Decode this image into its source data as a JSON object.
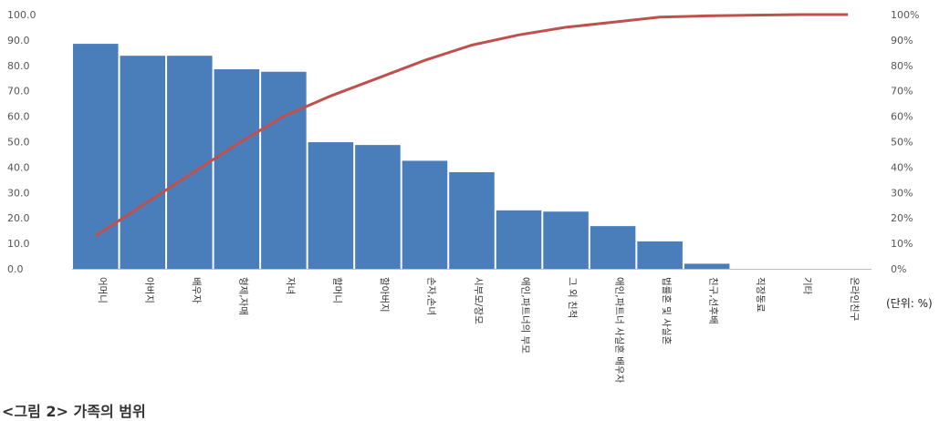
{
  "chart_data": {
    "type": "bar",
    "categories": [
      "어머니",
      "아버지",
      "배우자",
      "형제,자매",
      "자녀",
      "할머니",
      "할아버지",
      "손자,손녀",
      "시부모/장모",
      "애인,파트너의 부모",
      "그 외 친척",
      "애인,파트너 사실혼 배우자",
      "법률혼 및 사실혼",
      "친구,선후배",
      "직장동료",
      "기타",
      "온라인친구"
    ],
    "series": [
      {
        "type": "bar",
        "values": [
          88.5,
          83.8,
          83.8,
          78.5,
          77.5,
          49.8,
          48.7,
          42.5,
          38.0,
          23.0,
          22.5,
          16.8,
          10.8,
          2.0,
          0.0,
          0.0,
          0.0
        ],
        "color": "#4a7ebb"
      },
      {
        "type": "line",
        "axis": "right",
        "values": [
          13,
          25,
          37,
          49,
          60,
          68,
          75,
          82,
          88,
          92,
          95,
          97,
          99,
          99.5,
          99.8,
          100,
          100
        ],
        "color": "#c0504d"
      }
    ],
    "yticks_left": [
      "100.0",
      "90.0",
      "80.0",
      "70.0",
      "60.0",
      "50.0",
      "40.0",
      "30.0",
      "20.0",
      "10.0",
      "0.0"
    ],
    "yticks_right": [
      "100%",
      "90%",
      "80%",
      "70%",
      "60%",
      "50%",
      "40%",
      "30%",
      "20%",
      "10%",
      "0%"
    ],
    "ylim": [
      0,
      100
    ],
    "ylim_right": [
      0,
      100
    ],
    "unit_label": "(단위: %)",
    "grid": false
  },
  "caption": "<그림 2> 가족의 범위"
}
